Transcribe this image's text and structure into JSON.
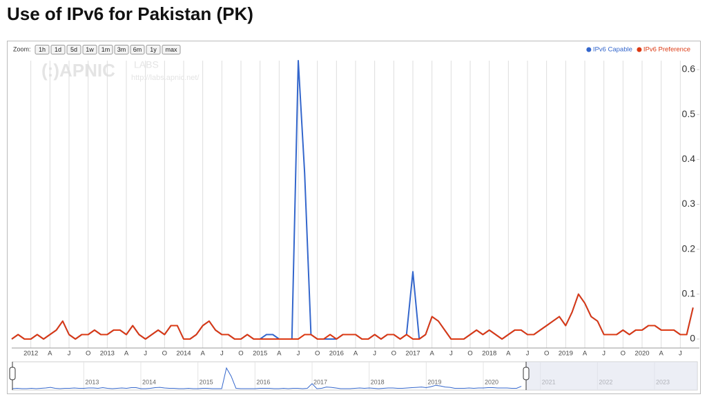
{
  "chart_data": {
    "type": "line",
    "title": "Use of IPv6 for Pakistan (PK)",
    "watermark": [
      "(:)APNIC",
      "LABS",
      "http://labs.apnic.net/"
    ],
    "zoom": {
      "label": "Zoom:",
      "buttons": [
        "1h",
        "1d",
        "5d",
        "1w",
        "1m",
        "3m",
        "6m",
        "1y",
        "max"
      ]
    },
    "x": [
      "2011-10",
      "2011-11",
      "2011-12",
      "2012-01",
      "2012-02",
      "2012-03",
      "2012-04",
      "2012-05",
      "2012-06",
      "2012-07",
      "2012-08",
      "2012-09",
      "2012-10",
      "2012-11",
      "2012-12",
      "2013-01",
      "2013-02",
      "2013-03",
      "2013-04",
      "2013-05",
      "2013-06",
      "2013-07",
      "2013-08",
      "2013-09",
      "2013-10",
      "2013-11",
      "2013-12",
      "2014-01",
      "2014-02",
      "2014-03",
      "2014-04",
      "2014-05",
      "2014-06",
      "2014-07",
      "2014-08",
      "2014-09",
      "2014-10",
      "2014-11",
      "2014-12",
      "2015-01",
      "2015-02",
      "2015-03",
      "2015-04",
      "2015-05",
      "2015-06",
      "2015-07",
      "2015-08",
      "2015-09",
      "2015-10",
      "2015-11",
      "2015-12",
      "2016-01",
      "2016-02",
      "2016-03",
      "2016-04",
      "2016-05",
      "2016-06",
      "2016-07",
      "2016-08",
      "2016-09",
      "2016-10",
      "2016-11",
      "2016-12",
      "2017-01",
      "2017-02",
      "2017-03",
      "2017-04",
      "2017-05",
      "2017-06",
      "2017-07",
      "2017-08",
      "2017-09",
      "2017-10",
      "2017-11",
      "2017-12",
      "2018-01",
      "2018-02",
      "2018-03",
      "2018-04",
      "2018-05",
      "2018-06",
      "2018-07",
      "2018-08",
      "2018-09",
      "2018-10",
      "2018-11",
      "2018-12",
      "2019-01",
      "2019-02",
      "2019-03",
      "2019-04",
      "2019-05",
      "2019-06",
      "2019-07",
      "2019-08",
      "2019-09",
      "2019-10",
      "2019-11",
      "2019-12",
      "2020-01",
      "2020-02",
      "2020-03",
      "2020-04",
      "2020-05",
      "2020-06",
      "2020-07",
      "2020-08",
      "2020-09"
    ],
    "series": [
      {
        "name": "IPv6 Capable",
        "color": "#3366cc",
        "values": [
          0,
          0.01,
          0,
          0,
          0.01,
          0,
          0.01,
          0.02,
          0.04,
          0.01,
          0,
          0.01,
          0.01,
          0.02,
          0.01,
          0.01,
          0.02,
          0.02,
          0.01,
          0.03,
          0.01,
          0,
          0.01,
          0.02,
          0.01,
          0.03,
          0.03,
          0,
          0,
          0.01,
          0.03,
          0.04,
          0.02,
          0.01,
          0.01,
          0,
          0,
          0.01,
          0,
          0,
          0.01,
          0.01,
          0,
          0,
          0,
          0.62,
          0.37,
          0.01,
          0,
          0,
          0,
          0,
          0.01,
          0.01,
          0.01,
          0,
          0,
          0.01,
          0,
          0.01,
          0.01,
          0,
          0.01,
          0.15,
          0,
          0.01,
          0.05,
          0.04,
          0.02,
          0,
          0,
          0,
          0.01,
          0.02,
          0.01,
          0.02,
          0.01,
          0,
          0.01,
          0.02,
          0.02,
          0.01,
          0.01,
          0.02,
          0.03,
          0.04,
          0.05,
          0.03,
          0.06,
          0.1,
          0.08,
          0.05,
          0.04,
          0.01,
          0.01,
          0.01,
          0.02,
          0.01,
          0.02,
          0.02,
          0.03,
          0.03,
          0.02,
          0.02,
          0.02,
          0.01,
          0.01,
          0.07
        ]
      },
      {
        "name": "IPv6 Preference",
        "color": "#dc3912",
        "values": [
          0,
          0.01,
          0,
          0,
          0.01,
          0,
          0.01,
          0.02,
          0.04,
          0.01,
          0,
          0.01,
          0.01,
          0.02,
          0.01,
          0.01,
          0.02,
          0.02,
          0.01,
          0.03,
          0.01,
          0,
          0.01,
          0.02,
          0.01,
          0.03,
          0.03,
          0,
          0,
          0.01,
          0.03,
          0.04,
          0.02,
          0.01,
          0.01,
          0,
          0,
          0.01,
          0,
          0,
          0,
          0,
          0,
          0,
          0,
          0,
          0.01,
          0.01,
          0,
          0,
          0.01,
          0,
          0.01,
          0.01,
          0.01,
          0,
          0,
          0.01,
          0,
          0.01,
          0.01,
          0,
          0.01,
          0,
          0,
          0.01,
          0.05,
          0.04,
          0.02,
          0,
          0,
          0,
          0.01,
          0.02,
          0.01,
          0.02,
          0.01,
          0,
          0.01,
          0.02,
          0.02,
          0.01,
          0.01,
          0.02,
          0.03,
          0.04,
          0.05,
          0.03,
          0.06,
          0.1,
          0.08,
          0.05,
          0.04,
          0.01,
          0.01,
          0.01,
          0.02,
          0.01,
          0.02,
          0.02,
          0.03,
          0.03,
          0.02,
          0.02,
          0.02,
          0.01,
          0.01,
          0.07
        ]
      }
    ],
    "xlim": [
      "2011-10",
      "2020-10"
    ],
    "xticks": [
      {
        "value": "2012-01",
        "label": "2012"
      },
      {
        "value": "2012-04",
        "label": "A"
      },
      {
        "value": "2012-07",
        "label": "J"
      },
      {
        "value": "2012-10",
        "label": "O"
      },
      {
        "value": "2013-01",
        "label": "2013"
      },
      {
        "value": "2013-04",
        "label": "A"
      },
      {
        "value": "2013-07",
        "label": "J"
      },
      {
        "value": "2013-10",
        "label": "O"
      },
      {
        "value": "2014-01",
        "label": "2014"
      },
      {
        "value": "2014-04",
        "label": "A"
      },
      {
        "value": "2014-07",
        "label": "J"
      },
      {
        "value": "2014-10",
        "label": "O"
      },
      {
        "value": "2015-01",
        "label": "2015"
      },
      {
        "value": "2015-04",
        "label": "A"
      },
      {
        "value": "2015-07",
        "label": "J"
      },
      {
        "value": "2015-10",
        "label": "O"
      },
      {
        "value": "2016-01",
        "label": "2016"
      },
      {
        "value": "2016-04",
        "label": "A"
      },
      {
        "value": "2016-07",
        "label": "J"
      },
      {
        "value": "2016-10",
        "label": "O"
      },
      {
        "value": "2017-01",
        "label": "2017"
      },
      {
        "value": "2017-04",
        "label": "A"
      },
      {
        "value": "2017-07",
        "label": "J"
      },
      {
        "value": "2017-10",
        "label": "O"
      },
      {
        "value": "2018-01",
        "label": "2018"
      },
      {
        "value": "2018-04",
        "label": "A"
      },
      {
        "value": "2018-07",
        "label": "J"
      },
      {
        "value": "2018-10",
        "label": "O"
      },
      {
        "value": "2019-01",
        "label": "2019"
      },
      {
        "value": "2019-04",
        "label": "A"
      },
      {
        "value": "2019-07",
        "label": "J"
      },
      {
        "value": "2019-10",
        "label": "O"
      },
      {
        "value": "2020-01",
        "label": "2020"
      },
      {
        "value": "2020-04",
        "label": "A"
      },
      {
        "value": "2020-07",
        "label": "J"
      }
    ],
    "ylim": [
      0,
      0.62
    ],
    "yticks": [
      0,
      0.1,
      0.2,
      0.3,
      0.4,
      0.5,
      0.6
    ],
    "grid": true,
    "legend": "top-right",
    "navigator": {
      "xlim": [
        "2011-10",
        "2023-10"
      ],
      "xticks": [
        {
          "value": "2013-01",
          "label": "2013"
        },
        {
          "value": "2014-01",
          "label": "2014"
        },
        {
          "value": "2015-01",
          "label": "2015"
        },
        {
          "value": "2016-01",
          "label": "2016"
        },
        {
          "value": "2017-01",
          "label": "2017"
        },
        {
          "value": "2018-01",
          "label": "2018"
        },
        {
          "value": "2019-01",
          "label": "2019"
        },
        {
          "value": "2020-01",
          "label": "2020"
        },
        {
          "value": "2021-01",
          "label": "2021"
        },
        {
          "value": "2022-01",
          "label": "2022"
        },
        {
          "value": "2023-01",
          "label": "2023"
        }
      ]
    }
  }
}
